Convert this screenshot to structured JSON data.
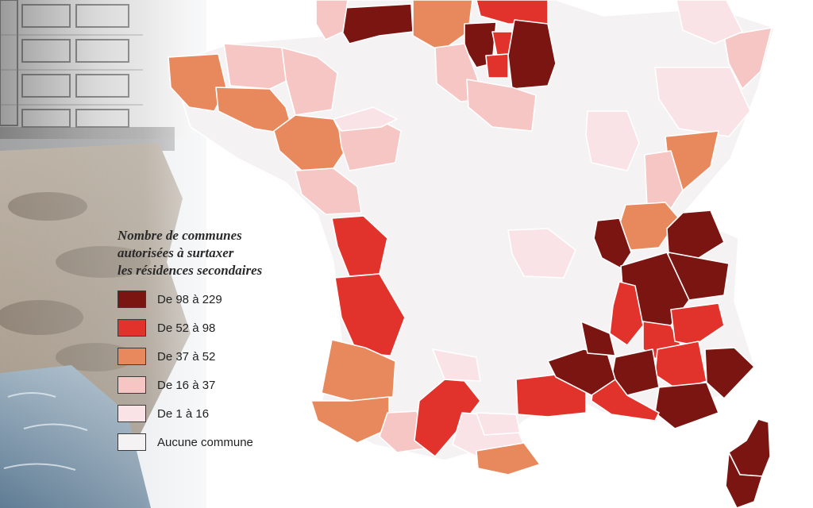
{
  "legend": {
    "title_lines": [
      "Nombre de communes",
      "autorisées à surtaxer",
      "les résidences secondaires"
    ],
    "items": [
      {
        "label": "De 98 à 229",
        "color": "#7a1512"
      },
      {
        "label": "De 52 à 98",
        "color": "#e1332c"
      },
      {
        "label": "De 37 à 52",
        "color": "#e8885d"
      },
      {
        "label": "De 16 à 37",
        "color": "#f6c6c4"
      },
      {
        "label": "De 1 à 16",
        "color": "#fae3e6"
      },
      {
        "label": "Aucune commune",
        "color": "#f4f2f3"
      }
    ]
  },
  "map": {
    "name": "France",
    "class_colors": {
      "c98_229": "#7a1512",
      "c52_98": "#e1332c",
      "c37_52": "#e8885d",
      "c16_37": "#f6c6c4",
      "c1_16": "#fae3e6",
      "none": "#f4f2f3"
    },
    "background_photo": "coastal-apartment-building-and-rocks"
  }
}
